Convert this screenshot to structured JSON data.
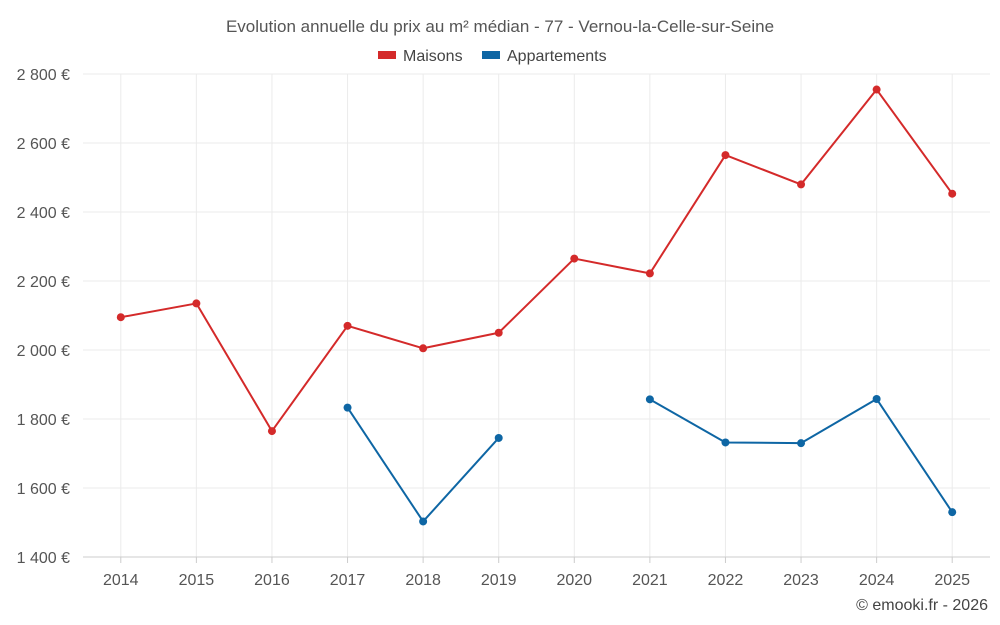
{
  "chart_data": {
    "type": "line",
    "title": "Evolution annuelle du prix au m² médian - 77 - Vernou-la-Celle-sur-Seine",
    "categories": [
      "2014",
      "2015",
      "2016",
      "2017",
      "2018",
      "2019",
      "2020",
      "2021",
      "2022",
      "2023",
      "2024",
      "2025"
    ],
    "ylim": [
      1400,
      2800
    ],
    "yticks": [
      1400,
      1600,
      1800,
      2000,
      2200,
      2400,
      2600,
      2800
    ],
    "ytick_labels": [
      "1 400 €",
      "1 600 €",
      "1 800 €",
      "2 000 €",
      "2 200 €",
      "2 400 €",
      "2 600 €",
      "2 800 €"
    ],
    "grid": true,
    "legend_position": "top-center",
    "series": [
      {
        "name": "Maisons",
        "color": "#d42a2a",
        "values": [
          2095,
          2135,
          1765,
          2070,
          2005,
          2050,
          2265,
          2222,
          2565,
          2480,
          2755,
          2453
        ]
      },
      {
        "name": "Appartements",
        "color": "#0e66a4",
        "values": [
          null,
          null,
          null,
          1833,
          1503,
          1745,
          null,
          1857,
          1732,
          1730,
          1858,
          1530
        ]
      }
    ],
    "credit": "© emooki.fr - 2026"
  }
}
